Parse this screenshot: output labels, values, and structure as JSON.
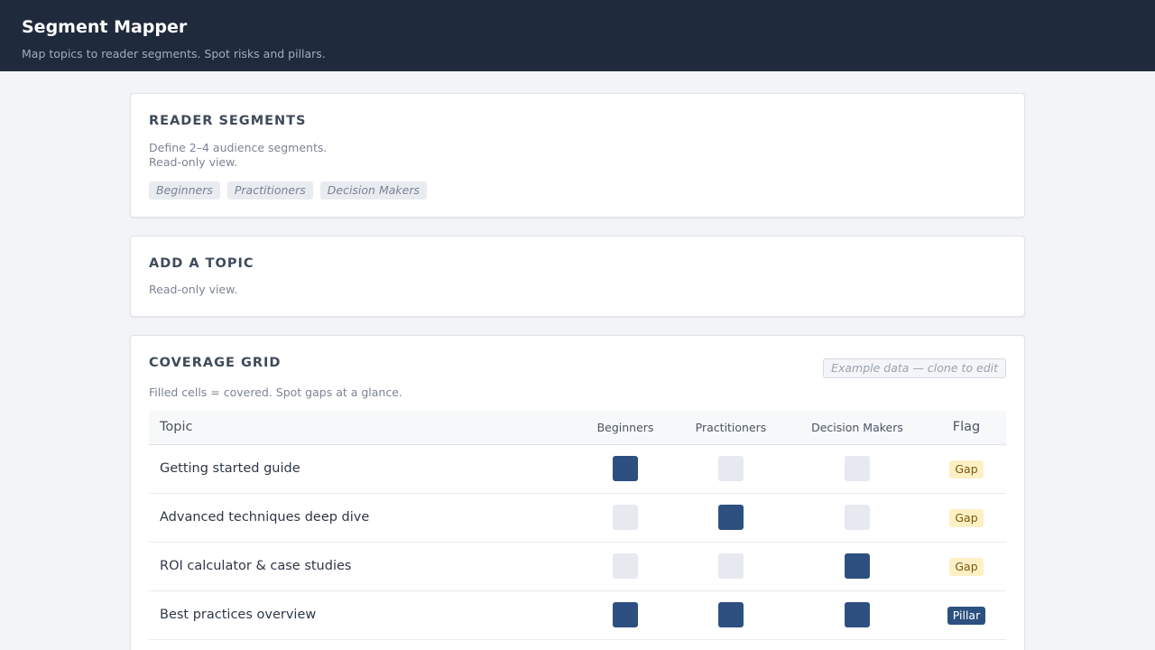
{
  "header": {
    "title": "Segment Mapper",
    "subtitle": "Map topics to reader segments. Spot risks and pillars."
  },
  "segments_card": {
    "title": "READER SEGMENTS",
    "help_line1": "Define 2–4 audience segments.",
    "help_line2": "Read-only view.",
    "chips": [
      "Beginners",
      "Practitioners",
      "Decision Makers"
    ]
  },
  "topic_card": {
    "title": "ADD A TOPIC",
    "help": "Read-only view."
  },
  "grid_card": {
    "title": "COVERAGE GRID",
    "badge": "Example data — clone to edit",
    "help": "Filled cells = covered. Spot gaps at a glance.",
    "columns": {
      "topic": "Topic",
      "seg1": "Beginners",
      "seg2": "Practitioners",
      "seg3": "Decision Makers",
      "flag": "Flag"
    },
    "rows": [
      {
        "topic": "Getting started guide",
        "coverage": [
          true,
          false,
          false
        ],
        "flag": "Gap"
      },
      {
        "topic": "Advanced techniques deep dive",
        "coverage": [
          false,
          true,
          false
        ],
        "flag": "Gap"
      },
      {
        "topic": "ROI calculator & case studies",
        "coverage": [
          false,
          false,
          true
        ],
        "flag": "Gap"
      },
      {
        "topic": "Best practices overview",
        "coverage": [
          true,
          true,
          true
        ],
        "flag": "Pillar"
      }
    ]
  },
  "colors": {
    "header_bg": "#1f2a3c",
    "covered": "#2d5080",
    "uncovered": "#e6e9f0",
    "gap_badge": "#fdf0c4"
  }
}
